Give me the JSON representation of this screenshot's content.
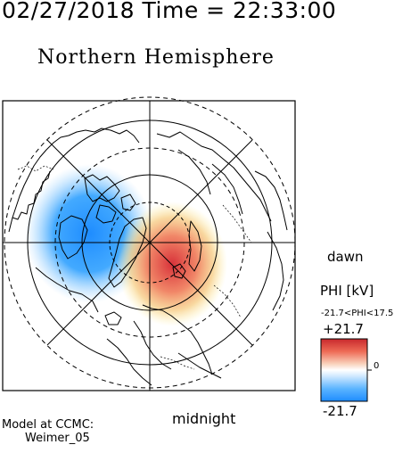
{
  "header": {
    "timestamp": "02/27/2018 Time = 22:33:00",
    "title": "Northern Hemisphere"
  },
  "map": {
    "projection": "polar stereographic, north pole centered",
    "hemisphere": "northern",
    "orientation_labels": {
      "right": "dawn",
      "bottom": "midnight"
    },
    "grid": {
      "latitude_circles_solid": true,
      "latitude_circles_dashed": true,
      "meridians": 8
    },
    "features": [
      "coastlines",
      "country-borders",
      "potential-pattern"
    ],
    "potential_pattern": {
      "negative_cell": "dawn-to-noon side (upper-left), blue",
      "positive_cell": "dusk-to-midnight side (lower-right), red"
    }
  },
  "colorbar": {
    "label": "PHI [kV]",
    "range_text": "-21.7<PHI<17.5",
    "max_label": "+21.7",
    "min_label": "-21.7",
    "zero_label": "0",
    "colors": {
      "max": "#c8282d",
      "mid": "#ffffff",
      "min": "#1e8cff"
    }
  },
  "footer": {
    "model_line1": "Model at CCMC:",
    "model_line2": "Weimer_05"
  }
}
